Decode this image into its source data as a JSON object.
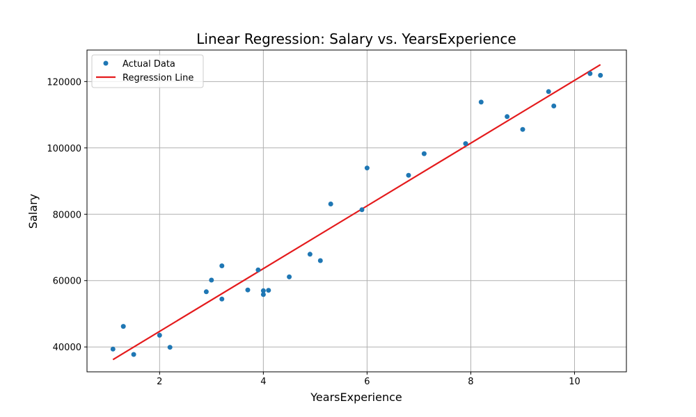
{
  "chart_data": {
    "type": "scatter",
    "title": "Linear Regression: Salary vs. YearsExperience",
    "xlabel": "YearsExperience",
    "ylabel": "Salary",
    "xlim": [
      0.6,
      11.0
    ],
    "ylim": [
      32500,
      129500
    ],
    "xticks": [
      2,
      4,
      6,
      8,
      10
    ],
    "yticks": [
      40000,
      60000,
      80000,
      100000,
      120000
    ],
    "grid": true,
    "legend_position": "top-left",
    "colors": {
      "points": "#1f77b4",
      "line": "#e41a1c"
    },
    "series": [
      {
        "name": "Actual Data",
        "kind": "scatter",
        "points": [
          [
            1.1,
            39343
          ],
          [
            1.3,
            46205
          ],
          [
            1.5,
            37731
          ],
          [
            2.0,
            43525
          ],
          [
            2.2,
            39891
          ],
          [
            2.9,
            56642
          ],
          [
            3.0,
            60150
          ],
          [
            3.2,
            54445
          ],
          [
            3.2,
            64445
          ],
          [
            3.7,
            57189
          ],
          [
            3.9,
            63218
          ],
          [
            4.0,
            55794
          ],
          [
            4.0,
            56957
          ],
          [
            4.1,
            57081
          ],
          [
            4.5,
            61111
          ],
          [
            4.9,
            67938
          ],
          [
            5.1,
            66029
          ],
          [
            5.3,
            83088
          ],
          [
            5.9,
            81363
          ],
          [
            6.0,
            93940
          ],
          [
            6.8,
            91738
          ],
          [
            7.1,
            98273
          ],
          [
            7.9,
            101302
          ],
          [
            8.2,
            113812
          ],
          [
            8.7,
            109431
          ],
          [
            9.0,
            105582
          ],
          [
            9.5,
            116969
          ],
          [
            9.6,
            112635
          ],
          [
            10.3,
            122391
          ],
          [
            10.5,
            121872
          ]
        ]
      },
      {
        "name": "Regression Line",
        "kind": "line",
        "points": [
          [
            1.1,
            36188
          ],
          [
            10.5,
            125072
          ]
        ]
      }
    ]
  }
}
